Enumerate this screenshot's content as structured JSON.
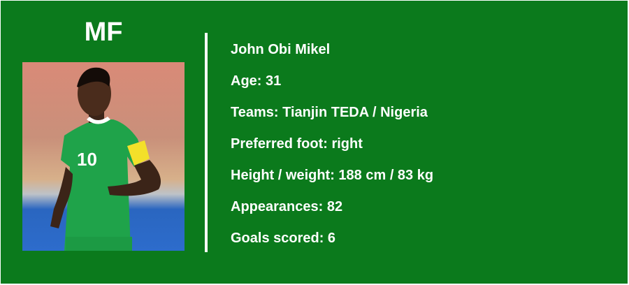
{
  "position": "MF",
  "photo": {
    "description_icon": "player-photo"
  },
  "player": {
    "name": "John Obi Mikel",
    "age": "Age: 31",
    "teams": "Teams: Tianjin TEDA / Nigeria",
    "foot": "Preferred foot: right",
    "height_weight": "Height / weight: 188 cm / 83 kg",
    "appearances": "Appearances: 82",
    "goals": "Goals scored: 6"
  },
  "colors": {
    "background": "#0b7a1c",
    "text": "#ffffff"
  }
}
